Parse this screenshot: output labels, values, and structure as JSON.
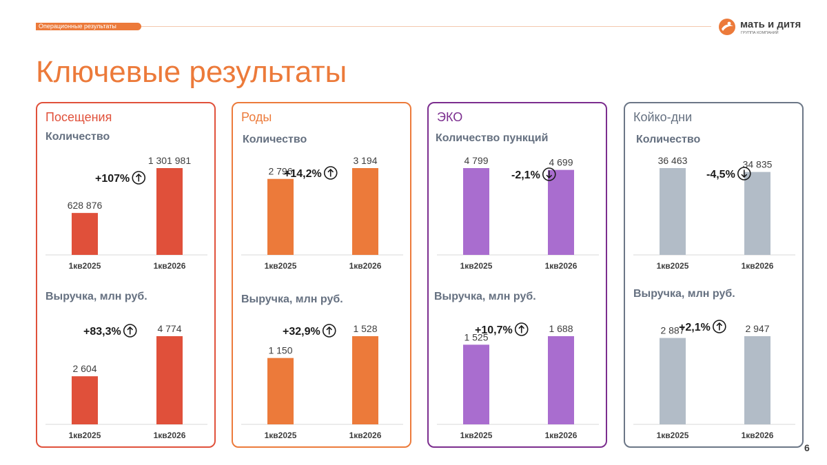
{
  "header": {
    "section_tag": "Операционные результаты",
    "logo_name": "мать и дитя",
    "logo_sub": "ГРУППА КОМПАНИЙ"
  },
  "title": "Ключевые результаты",
  "page_number": "6",
  "colors": {
    "accent": "#ec7a3a",
    "visits": "#e0503a",
    "births": "#ec7a3a",
    "ivf": "#a96dcf",
    "ivf_border": "#7b2d8e",
    "beddays": "#b2bcc7",
    "beddays_border": "#6b7686",
    "text": "#3d3d3d"
  },
  "cards": [
    {
      "title": "Посещения",
      "subtitle_top": "Количество",
      "subtitle_bottom": "Выручка, млн руб."
    },
    {
      "title": "Роды",
      "subtitle_top": "Количество",
      "subtitle_bottom": "Выручка, млн руб."
    },
    {
      "title": "ЭКО",
      "subtitle_top": "Количество пункций",
      "subtitle_bottom": "Выручка, млн руб."
    },
    {
      "title": "Койко-дни",
      "subtitle_top": "Количество",
      "subtitle_bottom": "Выручка, млн руб."
    }
  ],
  "chart_data": [
    {
      "type": "bar",
      "title": "Посещения — Количество",
      "categories": [
        "1кв2025",
        "1кв2026"
      ],
      "values": [
        628876,
        1301981
      ],
      "labels": [
        "628 876",
        "1 301 981"
      ],
      "change": "+107%",
      "direction": "up"
    },
    {
      "type": "bar",
      "title": "Посещения — Выручка, млн руб.",
      "categories": [
        "1кв2025",
        "1кв2026"
      ],
      "values": [
        2604,
        4774
      ],
      "labels": [
        "2 604",
        "4 774"
      ],
      "change": "+83,3%",
      "direction": "up"
    },
    {
      "type": "bar",
      "title": "Роды — Количество",
      "categories": [
        "1кв2025",
        "1кв2026"
      ],
      "values": [
        2796,
        3194
      ],
      "labels": [
        "2 796",
        "3 194"
      ],
      "change": "+14,2%",
      "direction": "up"
    },
    {
      "type": "bar",
      "title": "Роды — Выручка, млн руб.",
      "categories": [
        "1кв2025",
        "1кв2026"
      ],
      "values": [
        1150,
        1528
      ],
      "labels": [
        "1 150",
        "1 528"
      ],
      "change": "+32,9%",
      "direction": "up"
    },
    {
      "type": "bar",
      "title": "ЭКО — Количество пункций",
      "categories": [
        "1кв2025",
        "1кв2026"
      ],
      "values": [
        4799,
        4699
      ],
      "labels": [
        "4 799",
        "4 699"
      ],
      "change": "-2,1%",
      "direction": "down"
    },
    {
      "type": "bar",
      "title": "ЭКО — Выручка, млн руб.",
      "categories": [
        "1кв2025",
        "1кв2026"
      ],
      "values": [
        1525,
        1688
      ],
      "labels": [
        "1 525",
        "1 688"
      ],
      "change": "+10,7%",
      "direction": "up"
    },
    {
      "type": "bar",
      "title": "Койко-дни — Количество",
      "categories": [
        "1кв2025",
        "1кв2026"
      ],
      "values": [
        36463,
        34835
      ],
      "labels": [
        "36 463",
        "34 835"
      ],
      "change": "-4,5%",
      "direction": "down"
    },
    {
      "type": "bar",
      "title": "Койко-дни — Выручка, млн руб.",
      "categories": [
        "1кв2025",
        "1кв2026"
      ],
      "values": [
        2887,
        2947
      ],
      "labels": [
        "2 887",
        "2 947"
      ],
      "change": "+2,1%",
      "direction": "up"
    }
  ]
}
